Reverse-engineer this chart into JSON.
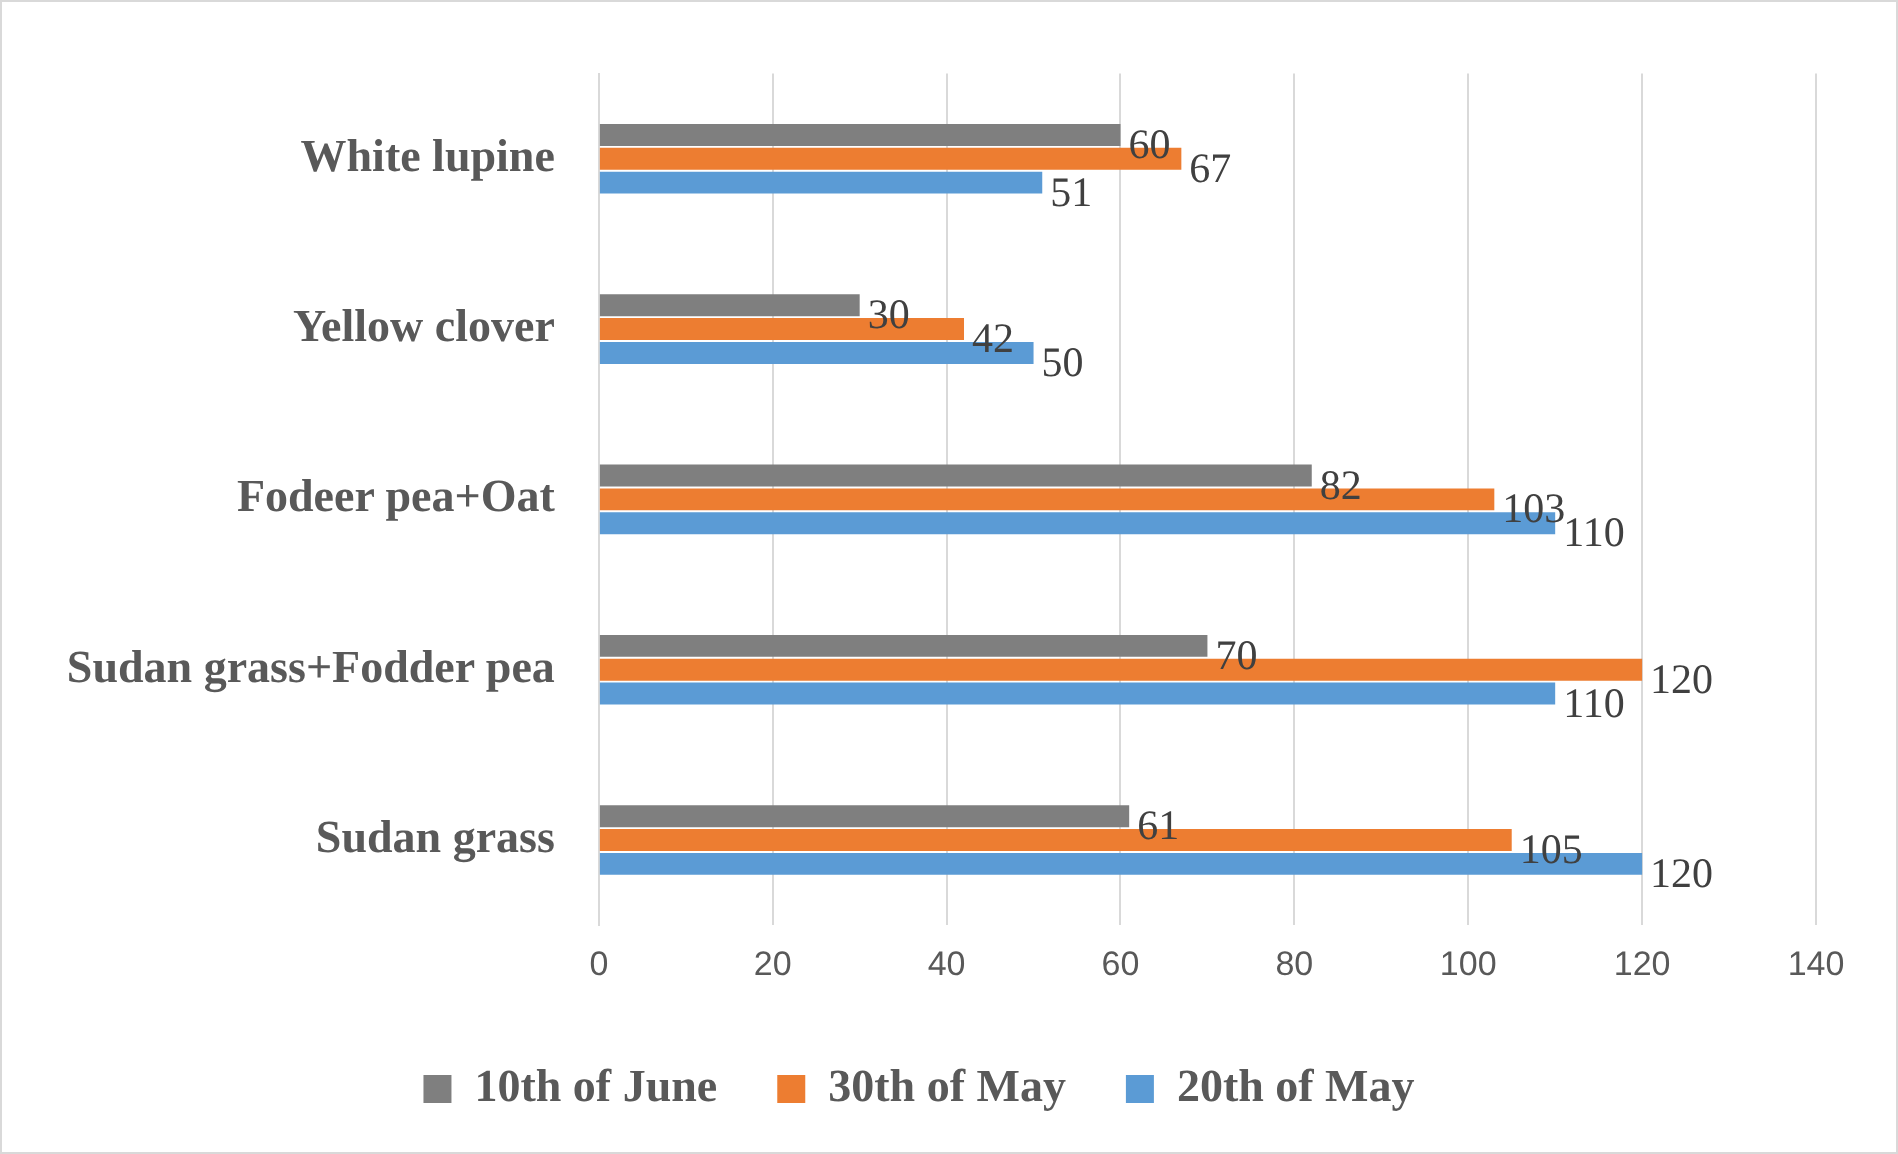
{
  "chart_data": {
    "type": "bar",
    "orientation": "horizontal",
    "categories": [
      "White lupine",
      "Yellow clover",
      "Fodeer pea+Oat",
      "Sudan grass+Fodder pea",
      "Sudan grass"
    ],
    "series": [
      {
        "name": "10th of June",
        "color": "#7f7f7f",
        "values": [
          60,
          30,
          82,
          70,
          61
        ]
      },
      {
        "name": "30th of May",
        "color": "#ed7d31",
        "values": [
          67,
          42,
          103,
          120,
          105
        ]
      },
      {
        "name": "20th of May",
        "color": "#5b9bd5",
        "values": [
          51,
          50,
          110,
          110,
          120
        ]
      }
    ],
    "xlim": [
      0,
      140
    ],
    "xticks": [
      0,
      20,
      40,
      60,
      80,
      100,
      120,
      140
    ],
    "grid": "x",
    "legend": "bottom",
    "data_labels": true
  }
}
